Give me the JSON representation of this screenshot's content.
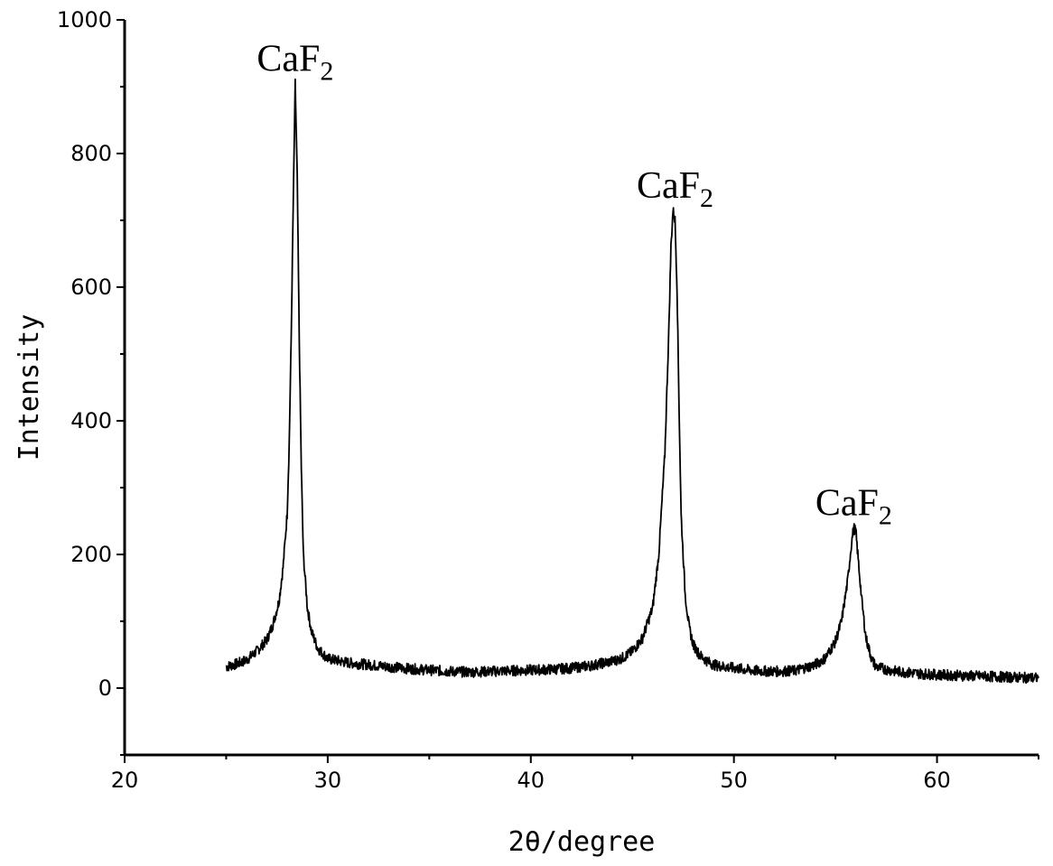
{
  "chart_data": {
    "type": "line",
    "title": "",
    "xlabel": "2θ/degree",
    "ylabel": "Intensity",
    "xlim": [
      20,
      65
    ],
    "ylim": [
      -100,
      1000
    ],
    "xticks": [
      20,
      30,
      40,
      50,
      60
    ],
    "yticks": [
      0,
      200,
      400,
      600,
      800,
      1000
    ],
    "grid": false,
    "series": [
      {
        "x": [
          25.0,
          25.5,
          26.0,
          26.5,
          27.0,
          27.3,
          27.6,
          27.8,
          28.0,
          28.1,
          28.2,
          28.3,
          28.4,
          28.5,
          28.6,
          28.7,
          28.8,
          29.0,
          29.2,
          29.5,
          30.0,
          31.0,
          32.0,
          33.0,
          34.0,
          35.0,
          36.0,
          37.0,
          38.0,
          39.0,
          40.0,
          41.0,
          42.0,
          43.0,
          44.0,
          44.5,
          45.0,
          45.5,
          46.0,
          46.3,
          46.6,
          46.8,
          46.9,
          47.0,
          47.1,
          47.2,
          47.3,
          47.4,
          47.6,
          47.8,
          48.0,
          48.3,
          48.7,
          49.0,
          49.5,
          50.0,
          51.0,
          52.0,
          53.0,
          54.0,
          54.5,
          55.0,
          55.3,
          55.6,
          55.8,
          55.9,
          56.0,
          56.1,
          56.3,
          56.5,
          56.8,
          57.0,
          57.5,
          58.0,
          59.0,
          60.0,
          61.0,
          62.0,
          63.0,
          64.0,
          65.0
        ],
        "y": [
          32,
          36,
          42,
          55,
          72,
          95,
          130,
          180,
          260,
          360,
          520,
          720,
          905,
          760,
          520,
          330,
          200,
          120,
          85,
          60,
          44,
          38,
          35,
          32,
          29,
          27,
          25,
          24,
          25,
          26,
          27,
          28,
          30,
          34,
          40,
          45,
          55,
          75,
          120,
          200,
          350,
          540,
          660,
          715,
          700,
          600,
          420,
          260,
          140,
          90,
          65,
          50,
          40,
          35,
          32,
          30,
          26,
          25,
          26,
          35,
          45,
          70,
          100,
          160,
          220,
          240,
          235,
          200,
          130,
          75,
          42,
          32,
          28,
          25,
          22,
          20,
          19,
          18,
          17,
          16,
          15
        ]
      }
    ],
    "annotations": [
      {
        "base": "CaF",
        "sub": "2",
        "x": 28.4,
        "y": 905
      },
      {
        "base": "CaF",
        "sub": "2",
        "x": 47.1,
        "y": 715
      },
      {
        "base": "CaF",
        "sub": "2",
        "x": 55.9,
        "y": 240
      }
    ]
  }
}
